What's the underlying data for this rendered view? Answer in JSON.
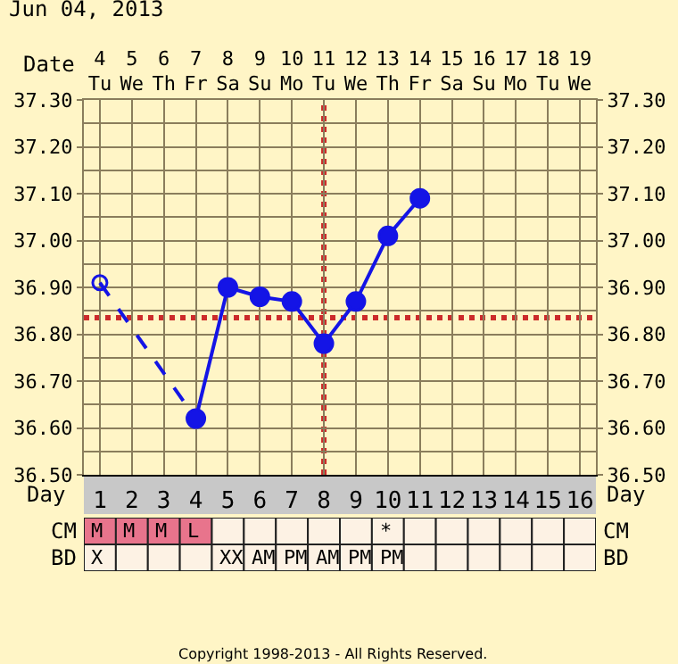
{
  "chart_data": [
    {
      "type": "line",
      "title": "Jun 04, 2013",
      "xlabel": "Day",
      "x2label": "Date",
      "xlim": [
        0.5,
        16.5
      ],
      "xticks": [
        1,
        2,
        3,
        4,
        5,
        6,
        7,
        8,
        9,
        10,
        11,
        12,
        13,
        14,
        15,
        16
      ],
      "x2lim": [
        "2013-06-03T12:00",
        "2013-06-19T12:00"
      ],
      "x2ticks": [
        {
          "value": "2013-06-04",
          "label": "4\nTu"
        },
        {
          "value": "2013-06-05",
          "label": "5\nWe"
        },
        {
          "value": "2013-06-06",
          "label": "6\nTh"
        },
        {
          "value": "2013-06-07",
          "label": "7\nFr"
        },
        {
          "value": "2013-06-08",
          "label": "8\nSa"
        },
        {
          "value": "2013-06-09",
          "label": "9\nSu"
        },
        {
          "value": "2013-06-10",
          "label": "10\nMo"
        },
        {
          "value": "2013-06-11",
          "label": "11\nTu"
        },
        {
          "value": "2013-06-12",
          "label": "12\nWe"
        },
        {
          "value": "2013-06-13",
          "label": "13\nTh"
        },
        {
          "value": "2013-06-14",
          "label": "14\nFr"
        },
        {
          "value": "2013-06-15",
          "label": "15\nSa"
        },
        {
          "value": "2013-06-16",
          "label": "16\nSu"
        },
        {
          "value": "2013-06-17",
          "label": "17\nMo"
        },
        {
          "value": "2013-06-18",
          "label": "18\nTu"
        },
        {
          "value": "2013-06-19",
          "label": "19\nWe"
        }
      ],
      "ylim": [
        36.5,
        37.3
      ],
      "yticks": [
        {
          "value": 36.5,
          "label": "36.50"
        },
        {
          "value": 36.6,
          "label": "36.60"
        },
        {
          "value": 36.7,
          "label": "36.70"
        },
        {
          "value": 36.8,
          "label": "36.80"
        },
        {
          "value": 36.9,
          "label": "36.90"
        },
        {
          "value": 37.0,
          "label": "37.00"
        },
        {
          "value": 37.1,
          "label": "37.10"
        },
        {
          "value": 37.2,
          "label": "37.20"
        },
        {
          "value": 37.3,
          "label": "37.30"
        }
      ],
      "y2lim": [
        36.5,
        37.3
      ],
      "y2ticks": [
        {
          "value": 36.5,
          "label": "36.50"
        },
        {
          "value": 36.6,
          "label": "36.60"
        },
        {
          "value": 36.7,
          "label": "36.70"
        },
        {
          "value": 36.8,
          "label": "36.80"
        },
        {
          "value": 36.9,
          "label": "36.90"
        },
        {
          "value": 37.0,
          "label": "37.00"
        },
        {
          "value": 37.1,
          "label": "37.10"
        },
        {
          "value": 37.2,
          "label": "37.20"
        },
        {
          "value": 37.3,
          "label": "37.30"
        }
      ],
      "grid": true,
      "marker": "circle",
      "series": [
        {
          "color": "#1414e6",
          "x": [
            1,
            4
          ],
          "values": [
            36.91,
            36.62
          ],
          "line_style": "dashed"
        },
        {
          "color": "#1414e6",
          "x": [
            4,
            5,
            6,
            7,
            8,
            9,
            10,
            11
          ],
          "values": [
            36.62,
            36.9,
            36.88,
            36.87,
            36.78,
            36.87,
            37.01,
            37.09
          ],
          "line_style": "solid"
        }
      ],
      "ref_lines": [
        {
          "axis": "y",
          "value": 36.835,
          "color": "#cc2b2b",
          "line_style": "dotted"
        },
        {
          "axis": "x",
          "value": 8,
          "color": "#cc2b2b",
          "line_style": "dotted"
        }
      ]
    },
    {
      "type": "heatmap",
      "categories": [
        null,
        null,
        null,
        null,
        null,
        null,
        null,
        null,
        null,
        null,
        null,
        null,
        null,
        null,
        null,
        null
      ],
      "y_categories": [
        "CM",
        "BD"
      ],
      "y2_categories": [
        "CM",
        "BD"
      ],
      "cells": [
        [
          null,
          null,
          null,
          null,
          null,
          null,
          null,
          null,
          null,
          null,
          null,
          null,
          null,
          null,
          null,
          null
        ],
        [
          null,
          null,
          null,
          null,
          null,
          null,
          null,
          null,
          null,
          null,
          null,
          null,
          null,
          null,
          null,
          null
        ]
      ],
      "cell_labels": [
        [
          "M",
          "M",
          "M",
          "L",
          null,
          null,
          null,
          null,
          null,
          "*",
          null,
          null,
          null,
          null,
          null,
          null
        ],
        [
          "X",
          null,
          null,
          null,
          "XX",
          "AM",
          "PM",
          "AM",
          "PM",
          "PM",
          null,
          null,
          null,
          null,
          null,
          null
        ]
      ],
      "colors": [
        [
          "#e8748c",
          "#e8748c",
          "#e8748c",
          "#e8748c",
          "#fdf2e4",
          "#fdf2e4",
          "#fdf2e4",
          "#fdf2e4",
          "#fdf2e4",
          "#fdf2e4",
          "#fdf2e4",
          "#fdf2e4",
          "#fdf2e4",
          "#fdf2e4",
          "#fdf2e4",
          "#fdf2e4"
        ],
        [
          "#fdf2e4",
          "#fdf2e4",
          "#fdf2e4",
          "#fdf2e4",
          "#fdf2e4",
          "#fdf2e4",
          "#fdf2e4",
          "#fdf2e4",
          "#fdf2e4",
          "#fdf2e4",
          "#fdf2e4",
          "#fdf2e4",
          "#fdf2e4",
          "#fdf2e4",
          "#fdf2e4",
          "#fdf2e4"
        ]
      ],
      "annotations": [
        "Copyright 1998-2013 - All Rights Reserved."
      ]
    }
  ]
}
